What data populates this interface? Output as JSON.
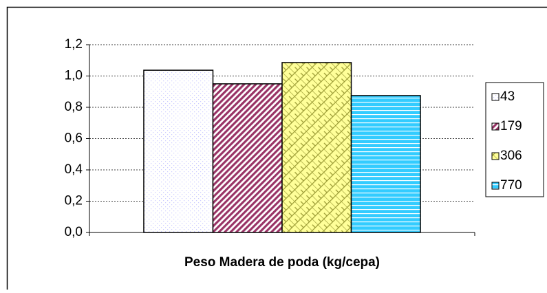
{
  "chart_data": {
    "type": "bar",
    "x_label": "Peso  Madera de poda (kg/cepa)",
    "categories": [
      null
    ],
    "series": [
      {
        "name": "43",
        "color": "#ccccff",
        "values": [
          1.037
        ]
      },
      {
        "name": "179",
        "color": "#993366",
        "values": [
          0.95
        ]
      },
      {
        "name": "306",
        "color": "#ffff99",
        "values": [
          1.086
        ]
      },
      {
        "name": "770",
        "color": "#33ccff",
        "values": [
          0.875
        ]
      }
    ],
    "ylim": [
      0,
      1.2
    ],
    "yticks": [
      {
        "value": 0,
        "label": "0,0"
      },
      {
        "value": 0.2,
        "label": "0,2"
      },
      {
        "value": 0.4,
        "label": "0,4"
      },
      {
        "value": 0.6,
        "label": "0,6"
      },
      {
        "value": 0.8,
        "label": "0,8"
      },
      {
        "value": 1.0,
        "label": "1,0"
      },
      {
        "value": 1.2,
        "label": "1,2"
      }
    ],
    "grid": true,
    "legend": "right"
  }
}
